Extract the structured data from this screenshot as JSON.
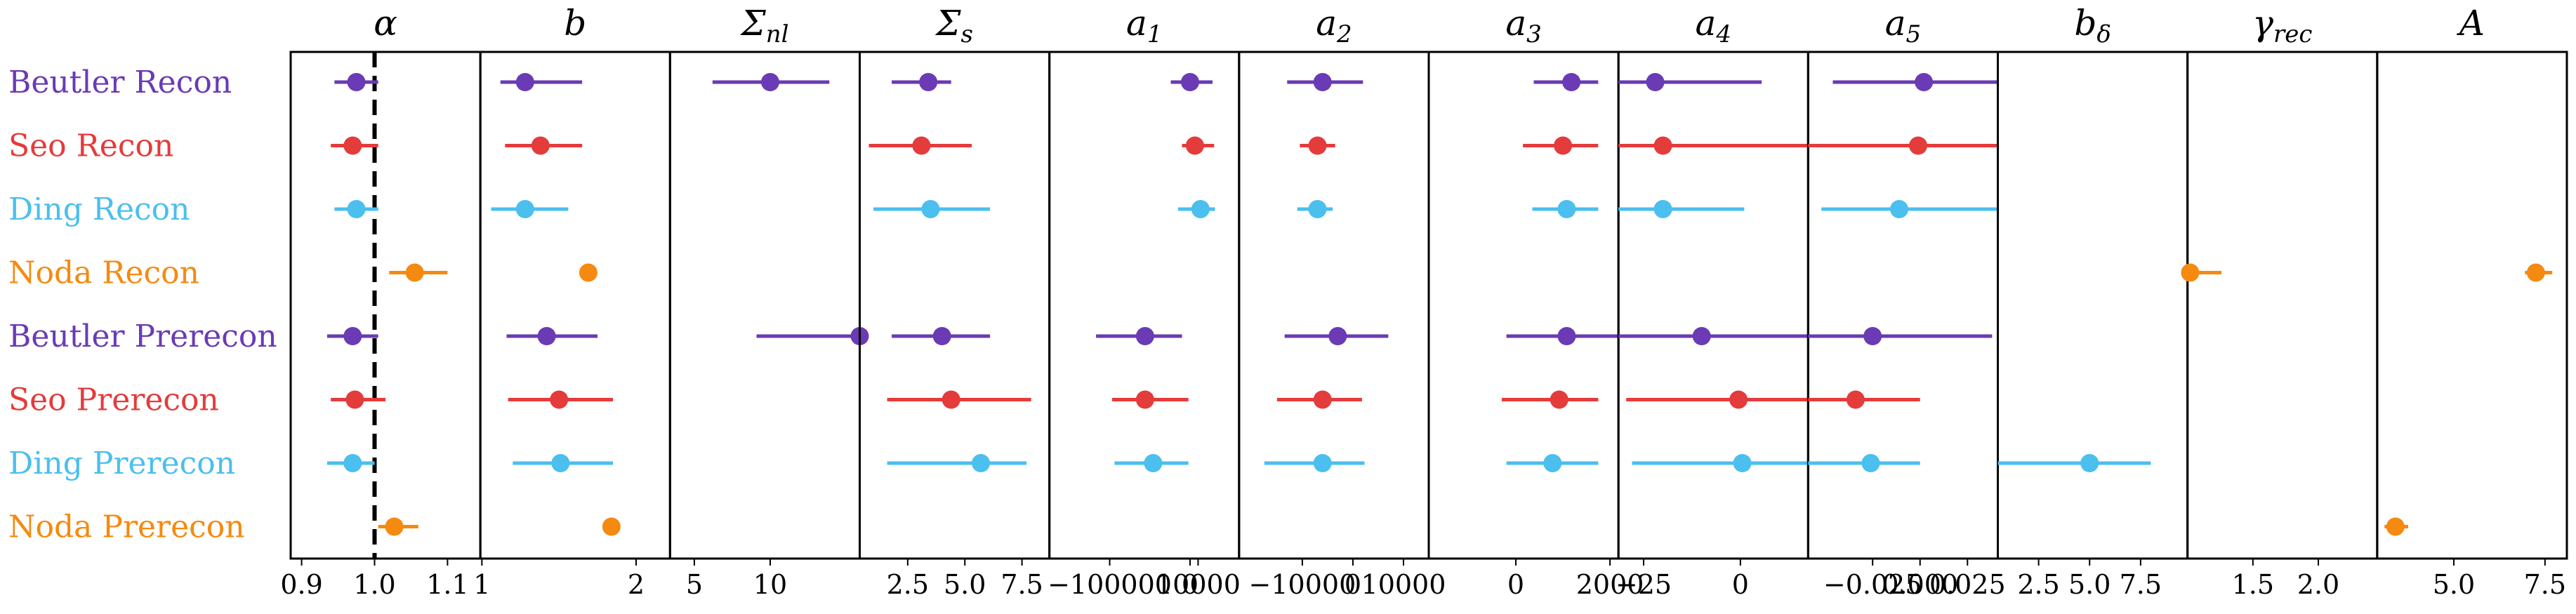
{
  "chart_data": {
    "type": "scatter",
    "kind": "forest-plot",
    "rows": [
      {
        "label": "Beutler Recon",
        "color": "#6a3bb4"
      },
      {
        "label": "Seo Recon",
        "color": "#e43b3b"
      },
      {
        "label": "Ding Recon",
        "color": "#4bbfee"
      },
      {
        "label": "Noda Recon",
        "color": "#f58a10"
      },
      {
        "label": "Beutler Prerecon",
        "color": "#6a3bb4"
      },
      {
        "label": "Seo Prerecon",
        "color": "#e43b3b"
      },
      {
        "label": "Ding Prerecon",
        "color": "#4bbfee"
      },
      {
        "label": "Noda Prerecon",
        "color": "#f58a10"
      }
    ],
    "panels": [
      {
        "id": "alpha",
        "title": "α",
        "xlim": [
          0.885,
          1.145
        ],
        "ticks": [
          {
            "v": 0.9,
            "t": "0.9"
          },
          {
            "v": 1.0,
            "t": "1.0"
          },
          {
            "v": 1.1,
            "t": "1.1"
          }
        ],
        "reference_line": 1.0,
        "points": [
          {
            "row": 0,
            "v": 0.975,
            "lo": 0.945,
            "hi": 1.005
          },
          {
            "row": 1,
            "v": 0.97,
            "lo": 0.94,
            "hi": 1.005
          },
          {
            "row": 2,
            "v": 0.975,
            "lo": 0.945,
            "hi": 1.005
          },
          {
            "row": 3,
            "v": 1.055,
            "lo": 1.02,
            "hi": 1.1
          },
          {
            "row": 4,
            "v": 0.97,
            "lo": 0.935,
            "hi": 1.005
          },
          {
            "row": 5,
            "v": 0.973,
            "lo": 0.94,
            "hi": 1.015
          },
          {
            "row": 6,
            "v": 0.97,
            "lo": 0.935,
            "hi": 1.0
          },
          {
            "row": 7,
            "v": 1.027,
            "lo": 1.005,
            "hi": 1.06
          }
        ]
      },
      {
        "id": "b",
        "title": "b",
        "xlim": [
          0.99,
          2.22
        ],
        "ticks": [
          {
            "v": 1,
            "t": "1"
          },
          {
            "v": 2,
            "t": "2"
          }
        ],
        "points": [
          {
            "row": 0,
            "v": 1.28,
            "lo": 1.12,
            "hi": 1.65
          },
          {
            "row": 1,
            "v": 1.38,
            "lo": 1.15,
            "hi": 1.65
          },
          {
            "row": 2,
            "v": 1.28,
            "lo": 1.06,
            "hi": 1.56
          },
          {
            "row": 3,
            "v": 1.69
          },
          {
            "row": 4,
            "v": 1.42,
            "lo": 1.16,
            "hi": 1.75
          },
          {
            "row": 5,
            "v": 1.5,
            "lo": 1.17,
            "hi": 1.85
          },
          {
            "row": 6,
            "v": 1.51,
            "lo": 1.2,
            "hi": 1.85
          },
          {
            "row": 7,
            "v": 1.84
          }
        ]
      },
      {
        "id": "sigma_nl",
        "title": "Σnl",
        "xlim": [
          3.4,
          15.9
        ],
        "ticks": [
          {
            "v": 5,
            "t": "5"
          },
          {
            "v": 10,
            "t": "10"
          }
        ],
        "points": [
          {
            "row": 0,
            "v": 10.0,
            "lo": 6.2,
            "hi": 13.9
          },
          {
            "row": 4,
            "v": 15.9,
            "lo": 9.1,
            "hi": 15.9
          }
        ]
      },
      {
        "id": "sigma_s",
        "title": "Σs",
        "xlim": [
          0.4,
          8.7
        ],
        "ticks": [
          {
            "v": 2.5,
            "t": "2.5"
          },
          {
            "v": 5.0,
            "t": "5.0"
          },
          {
            "v": 7.5,
            "t": "7.5"
          }
        ],
        "points": [
          {
            "row": 0,
            "v": 3.4,
            "lo": 1.8,
            "hi": 4.4
          },
          {
            "row": 1,
            "v": 3.1,
            "lo": 0.8,
            "hi": 5.3
          },
          {
            "row": 2,
            "v": 3.5,
            "lo": 1.0,
            "hi": 6.1
          },
          {
            "row": 4,
            "v": 4.0,
            "lo": 1.8,
            "hi": 6.1
          },
          {
            "row": 5,
            "v": 4.4,
            "lo": 1.6,
            "hi": 7.9
          },
          {
            "row": 6,
            "v": 5.7,
            "lo": 1.6,
            "hi": 7.7
          }
        ]
      },
      {
        "id": "a1",
        "title": "a1",
        "xlim": [
          -175000,
          61000
        ],
        "ticks": [
          {
            "v": -100000,
            "t": "−100000"
          },
          {
            "v": 0,
            "t": "0"
          },
          {
            "v": 10000,
            "t": "10000"
          }
        ],
        "points": [
          {
            "row": 0,
            "v": 0,
            "lo": -24000,
            "hi": 28000
          },
          {
            "row": 1,
            "v": 6000,
            "lo": -10000,
            "hi": 30000
          },
          {
            "row": 2,
            "v": 13000,
            "lo": -15000,
            "hi": 31000
          },
          {
            "row": 4,
            "v": -56000,
            "lo": -117000,
            "hi": -10000
          },
          {
            "row": 5,
            "v": -56000,
            "lo": -97000,
            "hi": -2000
          },
          {
            "row": 6,
            "v": -46000,
            "lo": -94000,
            "hi": -2000
          }
        ]
      },
      {
        "id": "a2",
        "title": "a2",
        "xlim": [
          -22500,
          15000
        ],
        "ticks": [
          {
            "v": -10000,
            "t": "−10000"
          },
          {
            "v": 0,
            "t": "0"
          },
          {
            "v": 10000,
            "t": "10000"
          }
        ],
        "points": [
          {
            "row": 0,
            "v": -6000,
            "lo": -13000,
            "hi": 2000
          },
          {
            "row": 1,
            "v": -7000,
            "lo": -10500,
            "hi": -3500
          },
          {
            "row": 2,
            "v": -7000,
            "lo": -11000,
            "hi": -4000
          },
          {
            "row": 4,
            "v": -3000,
            "lo": -13500,
            "hi": 7000
          },
          {
            "row": 5,
            "v": -6000,
            "lo": -15000,
            "hi": 1800
          },
          {
            "row": 6,
            "v": -6000,
            "lo": -17500,
            "hi": 2300
          }
        ]
      },
      {
        "id": "a3",
        "title": "a3",
        "xlim": [
          -1850,
          2180
        ],
        "ticks": [
          {
            "v": 0,
            "t": "0"
          },
          {
            "v": 2000,
            "t": "2000"
          }
        ],
        "points": [
          {
            "row": 0,
            "v": 1180,
            "lo": 380,
            "hi": 1750
          },
          {
            "row": 1,
            "v": 1000,
            "lo": 150,
            "hi": 1750
          },
          {
            "row": 2,
            "v": 1080,
            "lo": 350,
            "hi": 1750
          },
          {
            "row": 4,
            "v": 1080,
            "lo": -200,
            "hi": 2180
          },
          {
            "row": 5,
            "v": 920,
            "lo": -300,
            "hi": 1750
          },
          {
            "row": 6,
            "v": 780,
            "lo": -200,
            "hi": 1750
          }
        ]
      },
      {
        "id": "a4",
        "title": "a4",
        "xlim": [
          -31.5,
          17.5
        ],
        "ticks": [
          {
            "v": -25,
            "t": "−25"
          },
          {
            "v": 0,
            "t": "0"
          }
        ],
        "points": [
          {
            "row": 0,
            "v": -22,
            "lo": -31.5,
            "hi": 5.5
          },
          {
            "row": 1,
            "v": -20,
            "lo": -31.5,
            "hi": 17.5
          },
          {
            "row": 2,
            "v": -20,
            "lo": -31.5,
            "hi": 1.0
          },
          {
            "row": 4,
            "v": -10,
            "lo": -31.5,
            "hi": 17.5
          },
          {
            "row": 5,
            "v": -0.5,
            "lo": -29.5,
            "hi": 17.5
          },
          {
            "row": 6,
            "v": 0.5,
            "lo": -28,
            "hi": 17.5
          }
        ]
      },
      {
        "id": "a5",
        "title": "a5",
        "xlim": [
          -0.059,
          0.041
        ],
        "ticks": [
          {
            "v": -0.025,
            "t": "−0.025"
          },
          {
            "v": 0.0,
            "t": "0.000"
          },
          {
            "v": 0.025,
            "t": "0.025"
          }
        ],
        "reference_label": "−0.025 0.000",
        "points": [
          {
            "row": 0,
            "v": 0.002,
            "lo": -0.046,
            "hi": 0.041
          },
          {
            "row": 1,
            "v": -0.001,
            "lo": -0.059,
            "hi": 0.041
          },
          {
            "row": 2,
            "v": -0.011,
            "lo": -0.052,
            "hi": 0.041
          },
          {
            "row": 4,
            "v": -0.025,
            "lo": -0.059,
            "hi": 0.038
          },
          {
            "row": 5,
            "v": -0.034,
            "lo": -0.059,
            "hi": 0.0
          },
          {
            "row": 6,
            "v": -0.026,
            "lo": -0.059,
            "hi": 0.0
          }
        ]
      },
      {
        "id": "b_delta",
        "title": "bδ",
        "xlim": [
          0.5,
          9.8
        ],
        "ticks": [
          {
            "v": 2.5,
            "t": "2.5"
          },
          {
            "v": 5.0,
            "t": "5.0"
          },
          {
            "v": 7.5,
            "t": "7.5"
          }
        ],
        "points": [
          {
            "row": 6,
            "v": 5.0,
            "lo": 0.5,
            "hi": 8.0
          }
        ]
      },
      {
        "id": "gamma_rec",
        "title": "γrec",
        "xlim": [
          1.0,
          2.45
        ],
        "ticks": [
          {
            "v": 1.5,
            "t": "1.5"
          },
          {
            "v": 2.0,
            "t": "2.0"
          }
        ],
        "points": [
          {
            "row": 3,
            "v": 1.02,
            "lo": 1.0,
            "hi": 1.26
          }
        ]
      },
      {
        "id": "A",
        "title": "A",
        "xlim": [
          2.9,
          8.1
        ],
        "ticks": [
          {
            "v": 5.0,
            "t": "5.0"
          },
          {
            "v": 7.5,
            "t": "7.5"
          }
        ],
        "points": [
          {
            "row": 3,
            "v": 7.25,
            "lo": 6.95,
            "hi": 7.7
          },
          {
            "row": 7,
            "v": 3.4,
            "lo": 3.1,
            "hi": 3.75
          }
        ]
      }
    ]
  }
}
